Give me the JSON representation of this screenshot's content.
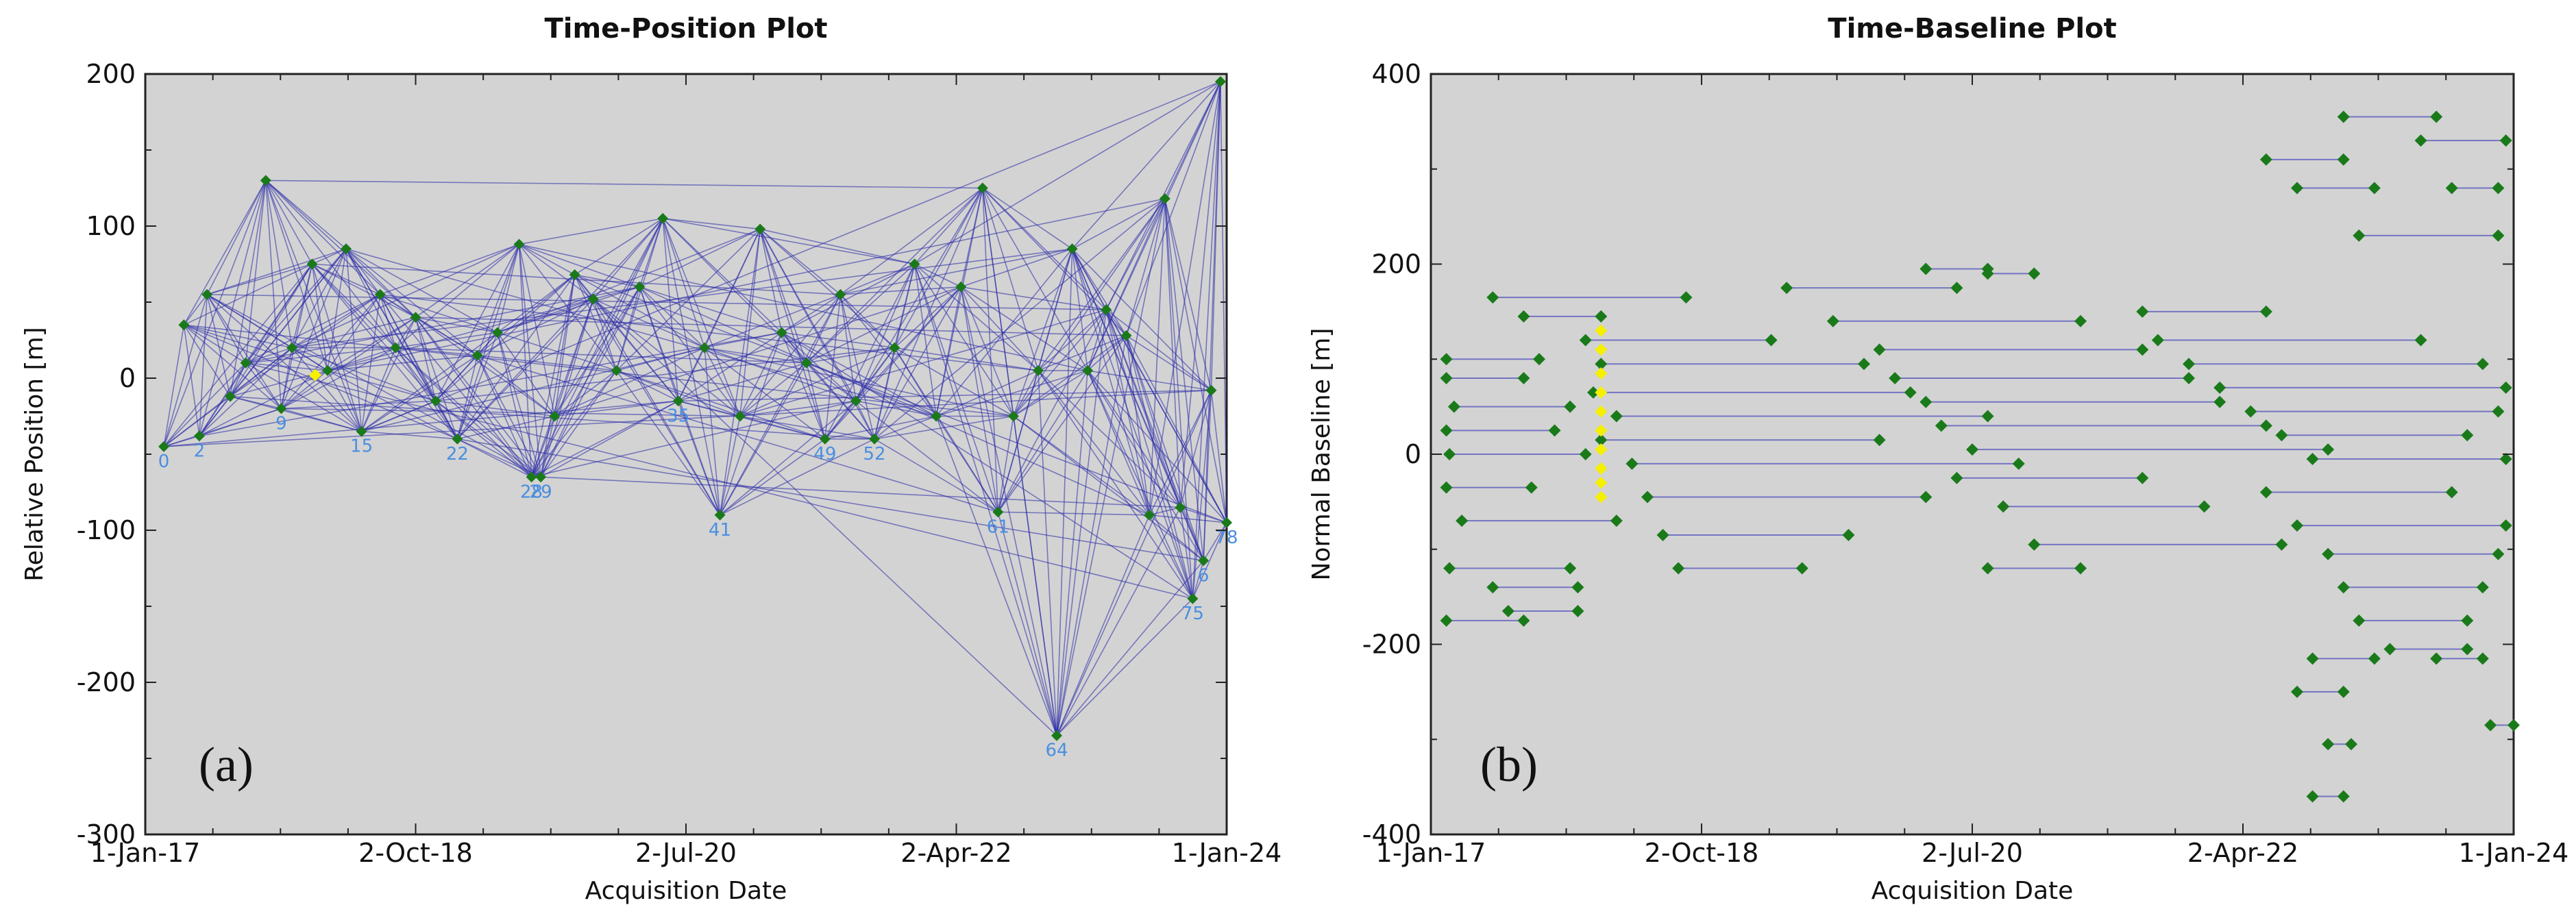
{
  "chart_data": [
    {
      "id": "a",
      "type": "scatter",
      "title": "Time-Position Plot",
      "xlabel": "Acquisition Date",
      "ylabel": "Relative Position [m]",
      "panel_label": "(a)",
      "x_ticks": [
        "1-Jan-17",
        "2-Oct-18",
        "2-Jul-20",
        "2-Apr-22",
        "1-Jan-24"
      ],
      "y_ticks": [
        "200",
        "100",
        "0",
        "-100",
        "-200",
        "-300"
      ],
      "ylim": [
        -300,
        200
      ],
      "xlim": [
        2017.0,
        2024.0
      ],
      "background": "#d3d3d3",
      "edge_color": "#2a2aa8",
      "node_color": "#1a7a1a",
      "super_master_color": "#f5f000",
      "points": [
        {
          "x": 2017.12,
          "y": -45,
          "label": "0"
        },
        {
          "x": 2017.25,
          "y": 35,
          "label": ""
        },
        {
          "x": 2017.35,
          "y": -38,
          "label": "2"
        },
        {
          "x": 2017.4,
          "y": 55,
          "label": ""
        },
        {
          "x": 2017.55,
          "y": -12,
          "label": ""
        },
        {
          "x": 2017.65,
          "y": 10,
          "label": ""
        },
        {
          "x": 2017.78,
          "y": 130,
          "label": ""
        },
        {
          "x": 2017.88,
          "y": -20,
          "label": "9"
        },
        {
          "x": 2017.95,
          "y": 20,
          "label": ""
        },
        {
          "x": 2018.08,
          "y": 75,
          "label": ""
        },
        {
          "x": 2018.18,
          "y": 5,
          "label": ""
        },
        {
          "x": 2018.3,
          "y": 85,
          "label": ""
        },
        {
          "x": 2018.4,
          "y": -35,
          "label": "15"
        },
        {
          "x": 2018.52,
          "y": 55,
          "label": ""
        },
        {
          "x": 2018.62,
          "y": 20,
          "label": ""
        },
        {
          "x": 2018.75,
          "y": 40,
          "label": ""
        },
        {
          "x": 2018.88,
          "y": -15,
          "label": ""
        },
        {
          "x": 2019.02,
          "y": -40,
          "label": "22"
        },
        {
          "x": 2019.15,
          "y": 15,
          "label": ""
        },
        {
          "x": 2019.28,
          "y": 30,
          "label": ""
        },
        {
          "x": 2019.42,
          "y": 88,
          "label": ""
        },
        {
          "x": 2019.5,
          "y": -65,
          "label": "28"
        },
        {
          "x": 2019.56,
          "y": -65,
          "label": "29"
        },
        {
          "x": 2019.65,
          "y": -25,
          "label": ""
        },
        {
          "x": 2019.78,
          "y": 68,
          "label": ""
        },
        {
          "x": 2019.9,
          "y": 52,
          "label": ""
        },
        {
          "x": 2020.05,
          "y": 5,
          "label": ""
        },
        {
          "x": 2020.2,
          "y": 60,
          "label": ""
        },
        {
          "x": 2020.35,
          "y": 105,
          "label": ""
        },
        {
          "x": 2020.45,
          "y": -15,
          "label": "35"
        },
        {
          "x": 2020.62,
          "y": 20,
          "label": ""
        },
        {
          "x": 2020.72,
          "y": -90,
          "label": "41"
        },
        {
          "x": 2020.85,
          "y": -25,
          "label": ""
        },
        {
          "x": 2020.98,
          "y": 98,
          "label": ""
        },
        {
          "x": 2021.12,
          "y": 30,
          "label": ""
        },
        {
          "x": 2021.28,
          "y": 10,
          "label": ""
        },
        {
          "x": 2021.4,
          "y": -40,
          "label": "49"
        },
        {
          "x": 2021.5,
          "y": 55,
          "label": ""
        },
        {
          "x": 2021.6,
          "y": -15,
          "label": ""
        },
        {
          "x": 2021.72,
          "y": -40,
          "label": "52"
        },
        {
          "x": 2021.85,
          "y": 20,
          "label": ""
        },
        {
          "x": 2021.98,
          "y": 75,
          "label": ""
        },
        {
          "x": 2022.12,
          "y": -25,
          "label": ""
        },
        {
          "x": 2022.28,
          "y": 60,
          "label": ""
        },
        {
          "x": 2022.42,
          "y": 125,
          "label": ""
        },
        {
          "x": 2022.52,
          "y": -88,
          "label": "61"
        },
        {
          "x": 2022.62,
          "y": -25,
          "label": ""
        },
        {
          "x": 2022.78,
          "y": 5,
          "label": ""
        },
        {
          "x": 2022.9,
          "y": -235,
          "label": "64"
        },
        {
          "x": 2023.0,
          "y": 85,
          "label": ""
        },
        {
          "x": 2023.1,
          "y": 5,
          "label": ""
        },
        {
          "x": 2023.22,
          "y": 45,
          "label": ""
        },
        {
          "x": 2023.35,
          "y": 28,
          "label": ""
        },
        {
          "x": 2023.5,
          "y": -90,
          "label": ""
        },
        {
          "x": 2023.6,
          "y": 118,
          "label": ""
        },
        {
          "x": 2023.7,
          "y": -85,
          "label": ""
        },
        {
          "x": 2023.78,
          "y": -145,
          "label": "75"
        },
        {
          "x": 2023.85,
          "y": -120,
          "label": "6"
        },
        {
          "x": 2023.9,
          "y": -8,
          "label": ""
        },
        {
          "x": 2023.96,
          "y": 195,
          "label": ""
        },
        {
          "x": 2024.0,
          "y": -95,
          "label": "78"
        }
      ],
      "super_master": {
        "x": 2018.1,
        "y": 2
      }
    },
    {
      "id": "b",
      "type": "scatter",
      "title": "Time-Baseline Plot",
      "xlabel": "Acquisition Date",
      "ylabel": "Normal Baseline [m]",
      "panel_label": "(b)",
      "x_ticks": [
        "1-Jan-17",
        "2-Oct-18",
        "2-Jul-20",
        "2-Apr-22",
        "1-Jan-24"
      ],
      "y_ticks": [
        "400",
        "200",
        "0",
        "-200",
        "-400"
      ],
      "ylim": [
        -400,
        400
      ],
      "xlim": [
        2017.0,
        2024.0
      ],
      "background": "#d3d3d3",
      "edge_color": "#5c5cbf",
      "node_color": "#1a7a1a",
      "super_master_color": "#f5f000",
      "pairs": [
        {
          "x1": 2017.4,
          "x2": 2018.65,
          "y": 165
        },
        {
          "x1": 2017.6,
          "x2": 2018.1,
          "y": 145
        },
        {
          "x1": 2017.1,
          "x2": 2017.7,
          "y": 100
        },
        {
          "x1": 2017.1,
          "x2": 2017.6,
          "y": 80
        },
        {
          "x1": 2017.15,
          "x2": 2017.9,
          "y": 50
        },
        {
          "x1": 2017.1,
          "x2": 2017.8,
          "y": 25
        },
        {
          "x1": 2017.12,
          "x2": 2018.0,
          "y": 0
        },
        {
          "x1": 2017.1,
          "x2": 2017.65,
          "y": -35
        },
        {
          "x1": 2017.2,
          "x2": 2018.2,
          "y": -70
        },
        {
          "x1": 2017.12,
          "x2": 2017.9,
          "y": -120
        },
        {
          "x1": 2017.1,
          "x2": 2017.6,
          "y": -175
        },
        {
          "x1": 2017.5,
          "x2": 2017.95,
          "y": -165
        },
        {
          "x1": 2017.4,
          "x2": 2017.95,
          "y": -140
        },
        {
          "x1": 2018.0,
          "x2": 2019.2,
          "y": 120
        },
        {
          "x1": 2018.1,
          "x2": 2019.8,
          "y": 95
        },
        {
          "x1": 2018.05,
          "x2": 2020.1,
          "y": 65
        },
        {
          "x1": 2018.2,
          "x2": 2020.6,
          "y": 40
        },
        {
          "x1": 2018.1,
          "x2": 2019.9,
          "y": 15
        },
        {
          "x1": 2018.3,
          "x2": 2020.8,
          "y": -10
        },
        {
          "x1": 2018.4,
          "x2": 2020.2,
          "y": -45
        },
        {
          "x1": 2018.5,
          "x2": 2019.7,
          "y": -85
        },
        {
          "x1": 2018.6,
          "x2": 2019.4,
          "y": -120
        },
        {
          "x1": 2019.3,
          "x2": 2020.4,
          "y": 175
        },
        {
          "x1": 2019.6,
          "x2": 2021.2,
          "y": 140
        },
        {
          "x1": 2019.9,
          "x2": 2021.6,
          "y": 110
        },
        {
          "x1": 2020.0,
          "x2": 2021.9,
          "y": 80
        },
        {
          "x1": 2020.2,
          "x2": 2022.1,
          "y": 55
        },
        {
          "x1": 2020.3,
          "x2": 2022.4,
          "y": 30
        },
        {
          "x1": 2020.5,
          "x2": 2022.8,
          "y": 5
        },
        {
          "x1": 2020.4,
          "x2": 2021.6,
          "y": -25
        },
        {
          "x1": 2020.7,
          "x2": 2022.0,
          "y": -55
        },
        {
          "x1": 2020.9,
          "x2": 2022.5,
          "y": -95
        },
        {
          "x1": 2020.6,
          "x2": 2021.2,
          "y": -120
        },
        {
          "x1": 2020.2,
          "x2": 2020.6,
          "y": 195
        },
        {
          "x1": 2020.6,
          "x2": 2020.9,
          "y": 190
        },
        {
          "x1": 2021.6,
          "x2": 2022.4,
          "y": 150
        },
        {
          "x1": 2021.7,
          "x2": 2023.4,
          "y": 120
        },
        {
          "x1": 2021.9,
          "x2": 2023.8,
          "y": 95
        },
        {
          "x1": 2022.1,
          "x2": 2023.95,
          "y": 70
        },
        {
          "x1": 2022.3,
          "x2": 2023.9,
          "y": 45
        },
        {
          "x1": 2022.5,
          "x2": 2023.7,
          "y": 20
        },
        {
          "x1": 2022.7,
          "x2": 2023.95,
          "y": -5
        },
        {
          "x1": 2022.4,
          "x2": 2023.6,
          "y": -40
        },
        {
          "x1": 2022.6,
          "x2": 2023.95,
          "y": -75
        },
        {
          "x1": 2022.8,
          "x2": 2023.9,
          "y": -105
        },
        {
          "x1": 2022.9,
          "x2": 2023.8,
          "y": -140
        },
        {
          "x1": 2023.0,
          "x2": 2023.7,
          "y": -175
        },
        {
          "x1": 2022.4,
          "x2": 2022.9,
          "y": 310
        },
        {
          "x1": 2022.9,
          "x2": 2023.5,
          "y": 355
        },
        {
          "x1": 2022.6,
          "x2": 2023.1,
          "y": 280
        },
        {
          "x1": 2023.0,
          "x2": 2023.9,
          "y": 230
        },
        {
          "x1": 2023.4,
          "x2": 2023.95,
          "y": 330
        },
        {
          "x1": 2022.7,
          "x2": 2023.1,
          "y": -215
        },
        {
          "x1": 2023.2,
          "x2": 2023.7,
          "y": -205
        },
        {
          "x1": 2022.6,
          "x2": 2022.9,
          "y": -250
        },
        {
          "x1": 2022.8,
          "x2": 2022.95,
          "y": -305
        },
        {
          "x1": 2022.7,
          "x2": 2022.9,
          "y": -360
        },
        {
          "x1": 2023.85,
          "x2": 2024.0,
          "y": -285
        },
        {
          "x1": 2023.5,
          "x2": 2023.8,
          "y": -215
        },
        {
          "x1": 2023.6,
          "x2": 2023.9,
          "y": 280
        }
      ],
      "super_master": {
        "x": 2018.1,
        "ys": [
          130,
          110,
          85,
          65,
          45,
          25,
          5,
          -15,
          -30,
          -45
        ]
      }
    }
  ]
}
